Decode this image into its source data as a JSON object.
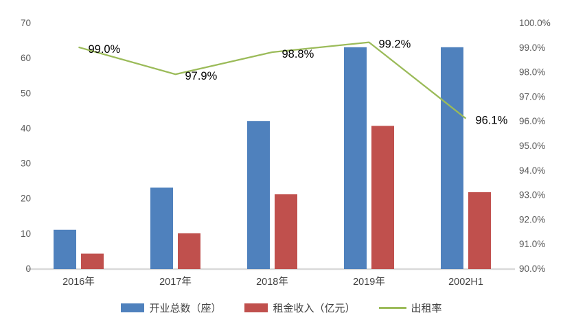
{
  "chart_data": {
    "type": "combo-bar-line",
    "title": "",
    "categories": [
      "2016年",
      "2017年",
      "2018年",
      "2019年",
      "2002H1"
    ],
    "bar_series": [
      {
        "id": "opened-total",
        "name": "开业总数（座）",
        "color": "#4F81BD",
        "axis": "left",
        "values": [
          11,
          23,
          42,
          63,
          63
        ]
      },
      {
        "id": "rental-income",
        "name": "租金收入（亿元）",
        "color": "#C0504D",
        "axis": "left",
        "values": [
          4.2,
          10,
          21.1,
          40.6,
          21.7
        ]
      }
    ],
    "line_series": {
      "id": "occupancy-rate",
      "name": "出租率",
      "color": "#9BBB59",
      "axis": "right",
      "values": [
        99.0,
        97.9,
        98.8,
        99.2,
        96.1
      ],
      "labels": [
        "99.0%",
        "97.9%",
        "98.8%",
        "99.2%",
        "96.1%"
      ]
    },
    "left_axis": {
      "min": 0,
      "max": 70,
      "step": 10,
      "ticks": [
        "0",
        "10",
        "20",
        "30",
        "40",
        "50",
        "60",
        "70"
      ]
    },
    "right_axis": {
      "min": 90,
      "max": 100,
      "step": 1,
      "ticks": [
        "90.0%",
        "91.0%",
        "92.0%",
        "93.0%",
        "94.0%",
        "95.0%",
        "96.0%",
        "97.0%",
        "98.0%",
        "99.0%",
        "100.0%"
      ]
    },
    "legend": [
      {
        "label": "开业总数（座）",
        "swatch": "bar",
        "color": "#4F81BD"
      },
      {
        "label": "租金收入（亿元）",
        "swatch": "bar",
        "color": "#C0504D"
      },
      {
        "label": "出租率",
        "swatch": "line",
        "color": "#9BBB59"
      }
    ],
    "gridlines": false,
    "background": "#FFFFFF",
    "axis_line_color": "#D9D9D9",
    "tick_color": "#595959",
    "category_label_color": "#404040",
    "data_label_color": "#000000"
  }
}
